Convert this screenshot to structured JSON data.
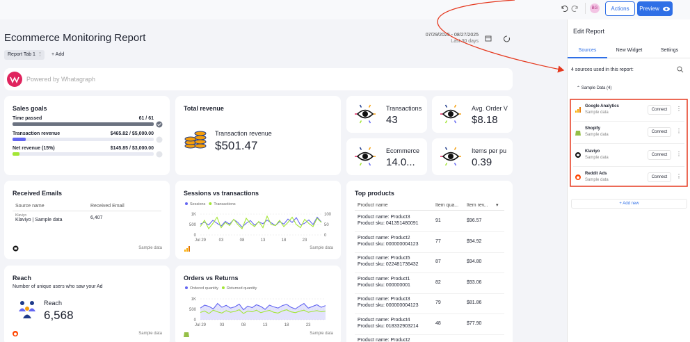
{
  "toolbar": {
    "avatar": "BG",
    "actions": "Actions",
    "preview": "Preview"
  },
  "header": {
    "title": "Ecommerce Monitoring Report",
    "date_range": "07/29/2025 - 08/27/2025",
    "period": "Last 30 days",
    "tab": "Report Tab 1",
    "add": "Add"
  },
  "banner": {
    "text": "Powered by Whatagraph"
  },
  "sales_goals": {
    "title": "Sales goals",
    "rows": [
      {
        "label": "Time passed",
        "value": "61 / 61",
        "current": 61,
        "target": 61,
        "color": "#6b7280"
      },
      {
        "label": "Transaction revenue",
        "value": "$465.82 / $5,000.00",
        "current": 465.82,
        "target": 5000,
        "color": "#6366f1"
      },
      {
        "label": "Net revenue (15%)",
        "value": "$145.85 / $3,000.00",
        "current": 145.85,
        "target": 3000,
        "color": "#a3e635"
      }
    ]
  },
  "total_revenue": {
    "title": "Total revenue",
    "label": "Transaction revenue",
    "value": "$501.47"
  },
  "kpis": [
    {
      "label": "Transactions",
      "value": 43
    },
    {
      "label": "Avg. Order V",
      "value": "$8.18"
    },
    {
      "label": "Ecommerce",
      "value": "14.0..."
    },
    {
      "label": "Items per pu",
      "value": 0.39
    }
  ],
  "received_emails": {
    "title": "Received Emails",
    "columns": [
      "Source name",
      "Received Email"
    ],
    "rows": [
      {
        "source": "Klaviyo",
        "name": "Klaviyo | Sample data",
        "value": "6,407"
      }
    ],
    "footer": "Sample data"
  },
  "sessions_chart": {
    "type": "line",
    "title": "Sessions vs transactions",
    "categories": [
      "Jul 29",
      null,
      null,
      null,
      null,
      "03",
      null,
      null,
      null,
      null,
      "08",
      null,
      null,
      null,
      null,
      "13",
      null,
      null,
      null,
      null,
      "18",
      null,
      null,
      null,
      null,
      "23",
      null,
      null,
      null,
      null
    ],
    "series": [
      {
        "name": "Sessions",
        "color": "#6366f1",
        "values": [
          520,
          610,
          480,
          700,
          560,
          430,
          650,
          520,
          740,
          600,
          380,
          560,
          690,
          470,
          620,
          540,
          710,
          580,
          450,
          640,
          520,
          760,
          600,
          830,
          480,
          560,
          720,
          500,
          850,
          620
        ]
      },
      {
        "name": "Transactions",
        "color": "#a3e635",
        "axis": "y2",
        "values": [
          40,
          70,
          30,
          55,
          85,
          35,
          60,
          45,
          75,
          50,
          30,
          80,
          55,
          40,
          65,
          35,
          90,
          50,
          45,
          70,
          40,
          60,
          85,
          50,
          35,
          75,
          55,
          40,
          80,
          60
        ]
      }
    ],
    "ylim": [
      0,
      1000
    ],
    "yticks": [
      0,
      500,
      {
        "value": 1000,
        "label": "1K"
      }
    ],
    "y2lim": [
      0,
      100
    ],
    "y2ticks": [
      0,
      50,
      100
    ],
    "grid": true,
    "footer": "Sample data"
  },
  "orders_chart": {
    "type": "area",
    "title": "Orders vs Returns",
    "categories": [
      "Jul 29",
      null,
      null,
      null,
      null,
      "03",
      null,
      null,
      null,
      null,
      "08",
      null,
      null,
      null,
      null,
      "13",
      null,
      null,
      null,
      null,
      "18",
      null,
      null,
      null,
      null,
      "23",
      null,
      null,
      null,
      null
    ],
    "series": [
      {
        "name": "Ordered quantity",
        "color": "#6366f1",
        "values": [
          560,
          700,
          640,
          520,
          780,
          600,
          690,
          560,
          620,
          750,
          480,
          660,
          580,
          720,
          640,
          500,
          700,
          620,
          560,
          680,
          740,
          600,
          520,
          660,
          780,
          560,
          640,
          720,
          600,
          680
        ]
      },
      {
        "name": "Returned quantity",
        "color": "#a3e635",
        "values": [
          350,
          420,
          300,
          460,
          380,
          320,
          440,
          360,
          400,
          480,
          300,
          420,
          380,
          460,
          340,
          400,
          450,
          360,
          320,
          420,
          480,
          380,
          340,
          410,
          460,
          360,
          400,
          440,
          380,
          420
        ]
      }
    ],
    "ylim": [
      0,
      1000
    ],
    "yticks": [
      0,
      500,
      {
        "value": 1000,
        "label": "1K"
      }
    ],
    "grid": true,
    "footer": "Sample data"
  },
  "top_products": {
    "title": "Top products",
    "columns": [
      "Product name",
      "Item qua...",
      "Item rev..."
    ],
    "rows": [
      {
        "name": "Product name: Product3",
        "sku": "Product sku: 041351480091",
        "qty": 91,
        "revenue": "$96.57"
      },
      {
        "name": "Product name: Product2",
        "sku": "Product sku: 000000004123",
        "qty": 77,
        "revenue": "$94.92"
      },
      {
        "name": "Product name: Product5",
        "sku": "Product sku: 022481736432",
        "qty": 87,
        "revenue": "$94.80"
      },
      {
        "name": "Product name: Product1",
        "sku": "Product sku: 000000001",
        "qty": 82,
        "revenue": "$93.06"
      },
      {
        "name": "Product name: Product3",
        "sku": "Product sku: 000000004123",
        "qty": 79,
        "revenue": "$81.86"
      },
      {
        "name": "Product name: Product4",
        "sku": "Product sku: 018332903214",
        "qty": 48,
        "revenue": "$77.90"
      },
      {
        "name": "Product name: Product2"
      }
    ]
  },
  "reach": {
    "title": "Reach",
    "subtitle": "Number of unique users who saw your Ad",
    "label": "Reach",
    "value": "6,568",
    "footer": "Sample data"
  },
  "panel": {
    "title": "Edit Report",
    "tabs": [
      "Sources",
      "New Widget",
      "Settings"
    ],
    "summary": "4 sources used in this report:",
    "group": "Sample Data (4)",
    "sources": [
      {
        "name": "Google Analytics",
        "sub": "Sample data",
        "button": "Connect"
      },
      {
        "name": "Shopify",
        "sub": "Sample data",
        "button": "Connect"
      },
      {
        "name": "Klaviyo",
        "sub": "Sample data",
        "button": "Connect"
      },
      {
        "name": "Reddit Ads",
        "sub": "Sample data",
        "button": "Connect"
      }
    ],
    "add_new": "+ Add new"
  }
}
